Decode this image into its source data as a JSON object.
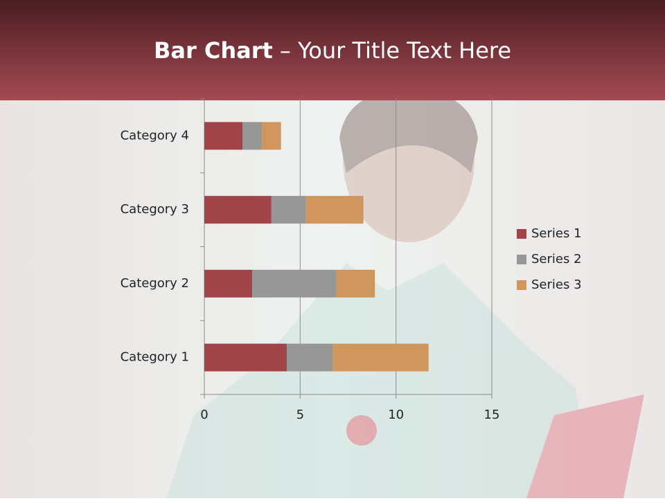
{
  "chart_data": {
    "type": "stacked-barh",
    "title_bold": "Bar Chart",
    "title_rest": "– Your Title Text Here",
    "categories": [
      "Category 1",
      "Category 2",
      "Category 3",
      "Category 4"
    ],
    "series": [
      {
        "name": "Series 1",
        "color": "#a0444a",
        "values": [
          4.3,
          2.5,
          3.5,
          2
        ]
      },
      {
        "name": "Series 2",
        "color": "#979797",
        "values": [
          2.4,
          4.4,
          1.8,
          1
        ]
      },
      {
        "name": "Series 3",
        "color": "#cf965e",
        "values": [
          5,
          2,
          3,
          1
        ]
      }
    ],
    "xlim": [
      0,
      15
    ],
    "xticks": [
      0,
      5,
      10,
      15
    ],
    "grid": true,
    "legend": "right"
  }
}
